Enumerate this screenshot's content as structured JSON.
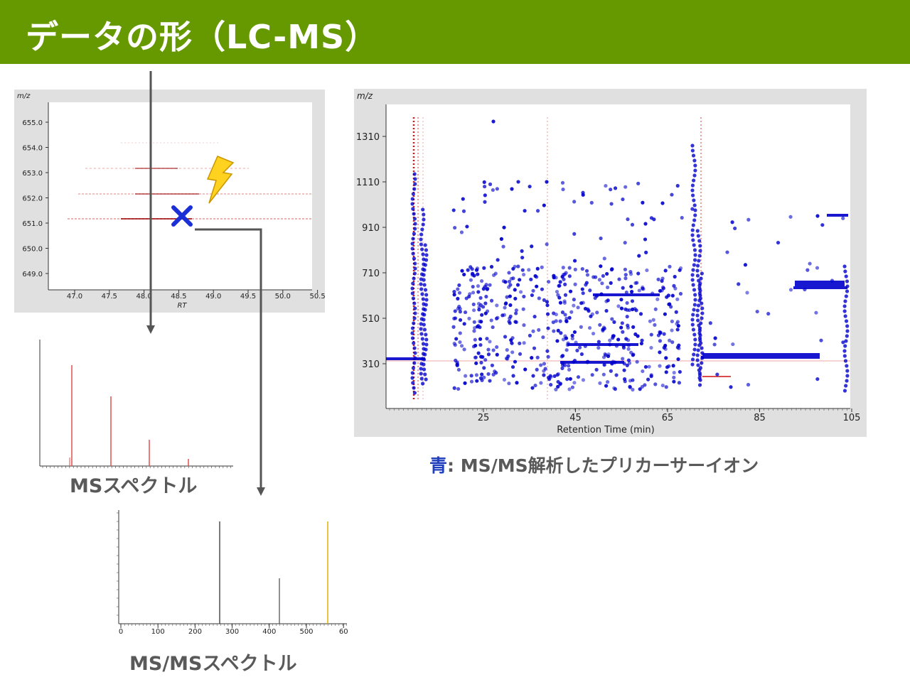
{
  "header": {
    "title": "データの形（LC-MS）",
    "bg_color": "#669900"
  },
  "lc_zoom": {
    "y_label": "m/z",
    "x_label": "RT",
    "y_ticks": [
      "655.0",
      "654.0",
      "653.0",
      "652.0",
      "651.0",
      "650.0",
      "649.0"
    ],
    "x_ticks": [
      "47.0",
      "47.5",
      "48.0",
      "48.5",
      "49.0",
      "49.5",
      "50.0",
      "50.5"
    ],
    "marker_icon": "x-mark-icon",
    "lightning_icon": "lightning-bolt-icon"
  },
  "ms_spectrum": {
    "caption": "MSスペクトル"
  },
  "msms_spectrum": {
    "caption": "MS/MSスペクトル",
    "x_ticks": [
      "0",
      "100",
      "200",
      "300",
      "400",
      "500",
      "60"
    ]
  },
  "lcms_map": {
    "y_label": "m/z",
    "x_label": "Retention Time (min)",
    "y_ticks": [
      "1310",
      "1110",
      "910",
      "710",
      "510",
      "310"
    ],
    "x_ticks": [
      "25",
      "45",
      "65",
      "85",
      "105"
    ],
    "point_color": "#0000cc",
    "ms1_color": "#cc0000"
  },
  "legend": {
    "key": "青",
    "sep": ": ",
    "text": "MS/MS解析したプリカーサーイオン",
    "key_color": "#1f3fbf"
  }
}
